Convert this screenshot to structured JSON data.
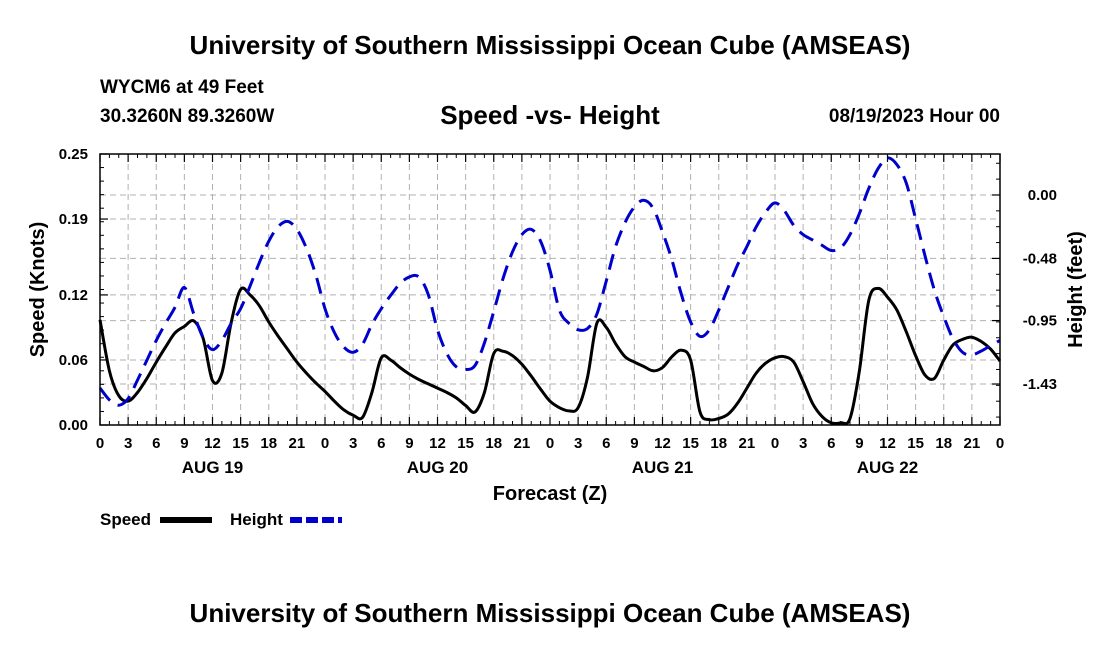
{
  "header": {
    "title": "University of Southern Mississippi Ocean Cube (AMSEAS)",
    "station": "WYCM6 at 49 Feet",
    "coordinates": "30.3260N  89.3260W",
    "datetime": "08/19/2023 Hour 00"
  },
  "footer": {
    "title": "University of Southern Mississippi Ocean Cube (AMSEAS)"
  },
  "chart_data": {
    "type": "line",
    "title": "Speed -vs- Height",
    "xlabel": "Forecast (Z)",
    "ylabel": "Speed (Knots)",
    "y2label": "Height (feet)",
    "grid": true,
    "x_range": [
      0,
      96
    ],
    "x_tick_step": 3,
    "x_tick_labels": [
      "0",
      "3",
      "6",
      "9",
      "12",
      "15",
      "18",
      "21",
      "0",
      "3",
      "6",
      "9",
      "12",
      "15",
      "18",
      "21",
      "0",
      "3",
      "6",
      "9",
      "12",
      "15",
      "18",
      "21",
      "0",
      "3",
      "6",
      "9",
      "12",
      "15",
      "18",
      "21",
      "0"
    ],
    "day_labels": [
      {
        "label": "AUG 19",
        "hour": 12
      },
      {
        "label": "AUG 20",
        "hour": 36
      },
      {
        "label": "AUG 21",
        "hour": 60
      },
      {
        "label": "AUG 22",
        "hour": 84
      }
    ],
    "ylim": [
      0,
      0.25
    ],
    "y_ticks": [
      0.0,
      0.06,
      0.12,
      0.19,
      0.25
    ],
    "y_tick_labels": [
      "0.00",
      "0.06",
      "0.12",
      "0.19",
      "0.25"
    ],
    "y2lim": [
      -1.74,
      0.31
    ],
    "y2_ticks": [
      0.0,
      -0.48,
      -0.95,
      -1.43
    ],
    "y2_tick_labels": [
      "0.00",
      "-0.48",
      "-0.95",
      "-1.43"
    ],
    "legend": [
      {
        "name": "Speed",
        "color": "#000000",
        "style": "solid"
      },
      {
        "name": "Height",
        "color": "#0000cc",
        "style": "dashed"
      }
    ],
    "series": [
      {
        "name": "Speed",
        "axis": "left",
        "color": "#000000",
        "x": [
          0,
          1,
          2,
          3,
          4,
          5,
          6,
          7,
          8,
          9,
          10,
          11,
          12,
          13,
          14,
          15,
          16,
          17,
          18,
          19,
          20,
          21,
          22,
          23,
          24,
          25,
          26,
          27,
          28,
          29,
          30,
          31,
          32,
          33,
          34,
          35,
          36,
          37,
          38,
          39,
          40,
          41,
          42,
          43,
          44,
          45,
          46,
          47,
          48,
          49,
          50,
          51,
          52,
          53,
          54,
          55,
          56,
          57,
          58,
          59,
          60,
          61,
          62,
          63,
          64,
          65,
          66,
          67,
          68,
          69,
          70,
          71,
          72,
          73,
          74,
          75,
          76,
          77,
          78,
          79,
          80,
          81,
          82,
          83,
          84,
          85,
          86,
          87,
          88,
          89,
          90,
          91,
          92,
          93,
          94,
          95,
          96
        ],
        "values": [
          0.097,
          0.05,
          0.027,
          0.022,
          0.03,
          0.043,
          0.058,
          0.072,
          0.085,
          0.091,
          0.096,
          0.08,
          0.041,
          0.048,
          0.095,
          0.125,
          0.12,
          0.11,
          0.095,
          0.082,
          0.07,
          0.058,
          0.048,
          0.039,
          0.031,
          0.022,
          0.014,
          0.009,
          0.007,
          0.03,
          0.062,
          0.06,
          0.053,
          0.047,
          0.042,
          0.038,
          0.034,
          0.03,
          0.025,
          0.018,
          0.012,
          0.03,
          0.066,
          0.068,
          0.064,
          0.056,
          0.045,
          0.033,
          0.022,
          0.016,
          0.013,
          0.016,
          0.044,
          0.094,
          0.09,
          0.075,
          0.063,
          0.058,
          0.054,
          0.05,
          0.053,
          0.063,
          0.069,
          0.06,
          0.012,
          0.005,
          0.006,
          0.01,
          0.02,
          0.034,
          0.048,
          0.057,
          0.062,
          0.063,
          0.058,
          0.04,
          0.02,
          0.008,
          0.002,
          0.002,
          0.006,
          0.05,
          0.115,
          0.126,
          0.118,
          0.106,
          0.086,
          0.064,
          0.046,
          0.043,
          0.06,
          0.074,
          0.079,
          0.081,
          0.077,
          0.07,
          0.059
        ]
      },
      {
        "name": "Height",
        "axis": "right",
        "color": "#0000cc",
        "x": [
          0,
          1,
          2,
          3,
          4,
          5,
          6,
          7,
          8,
          9,
          10,
          11,
          12,
          13,
          14,
          15,
          16,
          17,
          18,
          19,
          20,
          21,
          22,
          23,
          24,
          25,
          26,
          27,
          28,
          29,
          30,
          31,
          32,
          33,
          34,
          35,
          36,
          37,
          38,
          39,
          40,
          41,
          42,
          43,
          44,
          45,
          46,
          47,
          48,
          49,
          50,
          51,
          52,
          53,
          54,
          55,
          56,
          57,
          58,
          59,
          60,
          61,
          62,
          63,
          64,
          65,
          66,
          67,
          68,
          69,
          70,
          71,
          72,
          73,
          74,
          75,
          76,
          77,
          78,
          79,
          80,
          81,
          82,
          83,
          84,
          85,
          86,
          87,
          88,
          89,
          90,
          91,
          92,
          93,
          94,
          95,
          96
        ],
        "values": [
          -1.46,
          -1.55,
          -1.59,
          -1.54,
          -1.4,
          -1.25,
          -1.1,
          -0.97,
          -0.85,
          -0.7,
          -0.9,
          -1.08,
          -1.17,
          -1.1,
          -0.97,
          -0.86,
          -0.69,
          -0.51,
          -0.35,
          -0.24,
          -0.2,
          -0.26,
          -0.4,
          -0.6,
          -0.86,
          -1.04,
          -1.15,
          -1.19,
          -1.13,
          -0.98,
          -0.86,
          -0.76,
          -0.67,
          -0.62,
          -0.62,
          -0.75,
          -1.02,
          -1.2,
          -1.3,
          -1.32,
          -1.29,
          -1.12,
          -0.88,
          -0.63,
          -0.43,
          -0.3,
          -0.26,
          -0.35,
          -0.57,
          -0.87,
          -0.97,
          -1.02,
          -1.01,
          -0.9,
          -0.65,
          -0.39,
          -0.21,
          -0.09,
          -0.04,
          -0.1,
          -0.28,
          -0.49,
          -0.75,
          -0.96,
          -1.07,
          -1.02,
          -0.87,
          -0.7,
          -0.53,
          -0.39,
          -0.24,
          -0.13,
          -0.06,
          -0.12,
          -0.23,
          -0.3,
          -0.34,
          -0.38,
          -0.42,
          -0.4,
          -0.3,
          -0.14,
          0.05,
          0.2,
          0.28,
          0.23,
          0.09,
          -0.18,
          -0.46,
          -0.72,
          -0.92,
          -1.09,
          -1.19,
          -1.21,
          -1.18,
          -1.14,
          -1.1
        ]
      }
    ]
  }
}
